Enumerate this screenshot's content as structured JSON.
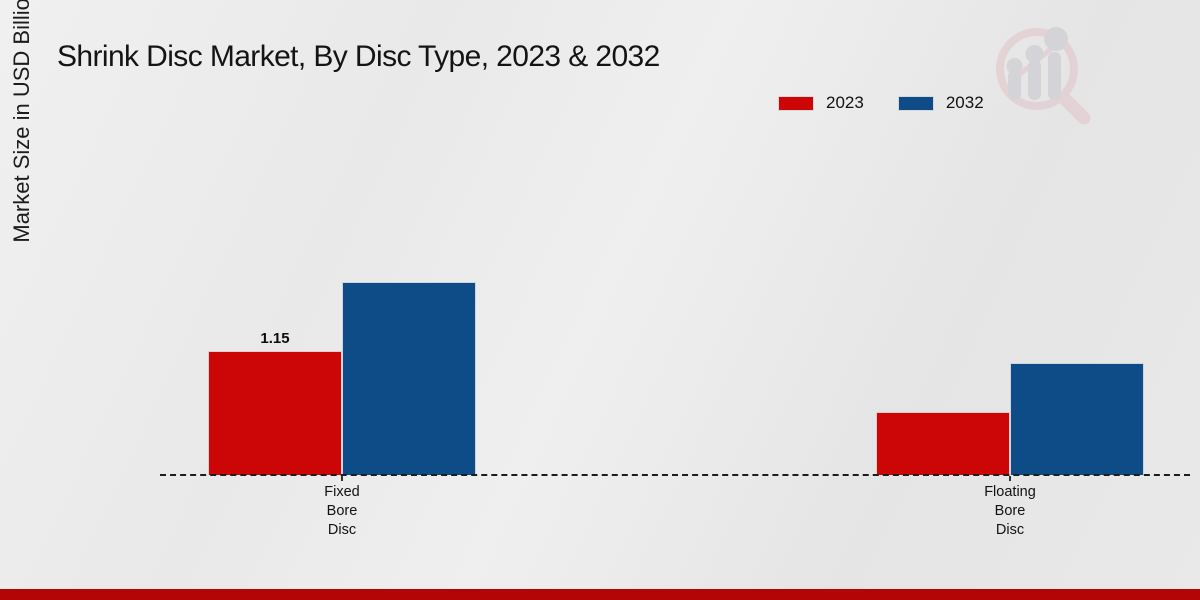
{
  "header": {
    "title": "Shrink Disc Market, By Disc Type, 2023 & 2032"
  },
  "colors": {
    "series_2023": "#cc0606",
    "series_2032": "#0e4c87",
    "footer_bar": "#b30505",
    "baseline": "#1d1d1d"
  },
  "watermark_icon": "magnifier-bar-chart-logo",
  "chart_data": {
    "type": "bar",
    "title": "Shrink Disc Market, By Disc Type, 2023 & 2032",
    "xlabel": "",
    "ylabel": "Market Size in USD Billion",
    "categories": [
      "Fixed Bore Disc",
      "Floating Bore Disc"
    ],
    "series": [
      {
        "name": "2023",
        "color": "#cc0606",
        "values": [
          1.15,
          0.58
        ]
      },
      {
        "name": "2032",
        "color": "#0e4c87",
        "values": [
          1.79,
          1.04
        ]
      }
    ],
    "value_labels": [
      {
        "category_index": 0,
        "series_index": 0,
        "text": "1.15"
      }
    ],
    "ylim": [
      0,
      3
    ],
    "grid": false,
    "legend_position": "top-right",
    "baseline_style": "dashed"
  }
}
